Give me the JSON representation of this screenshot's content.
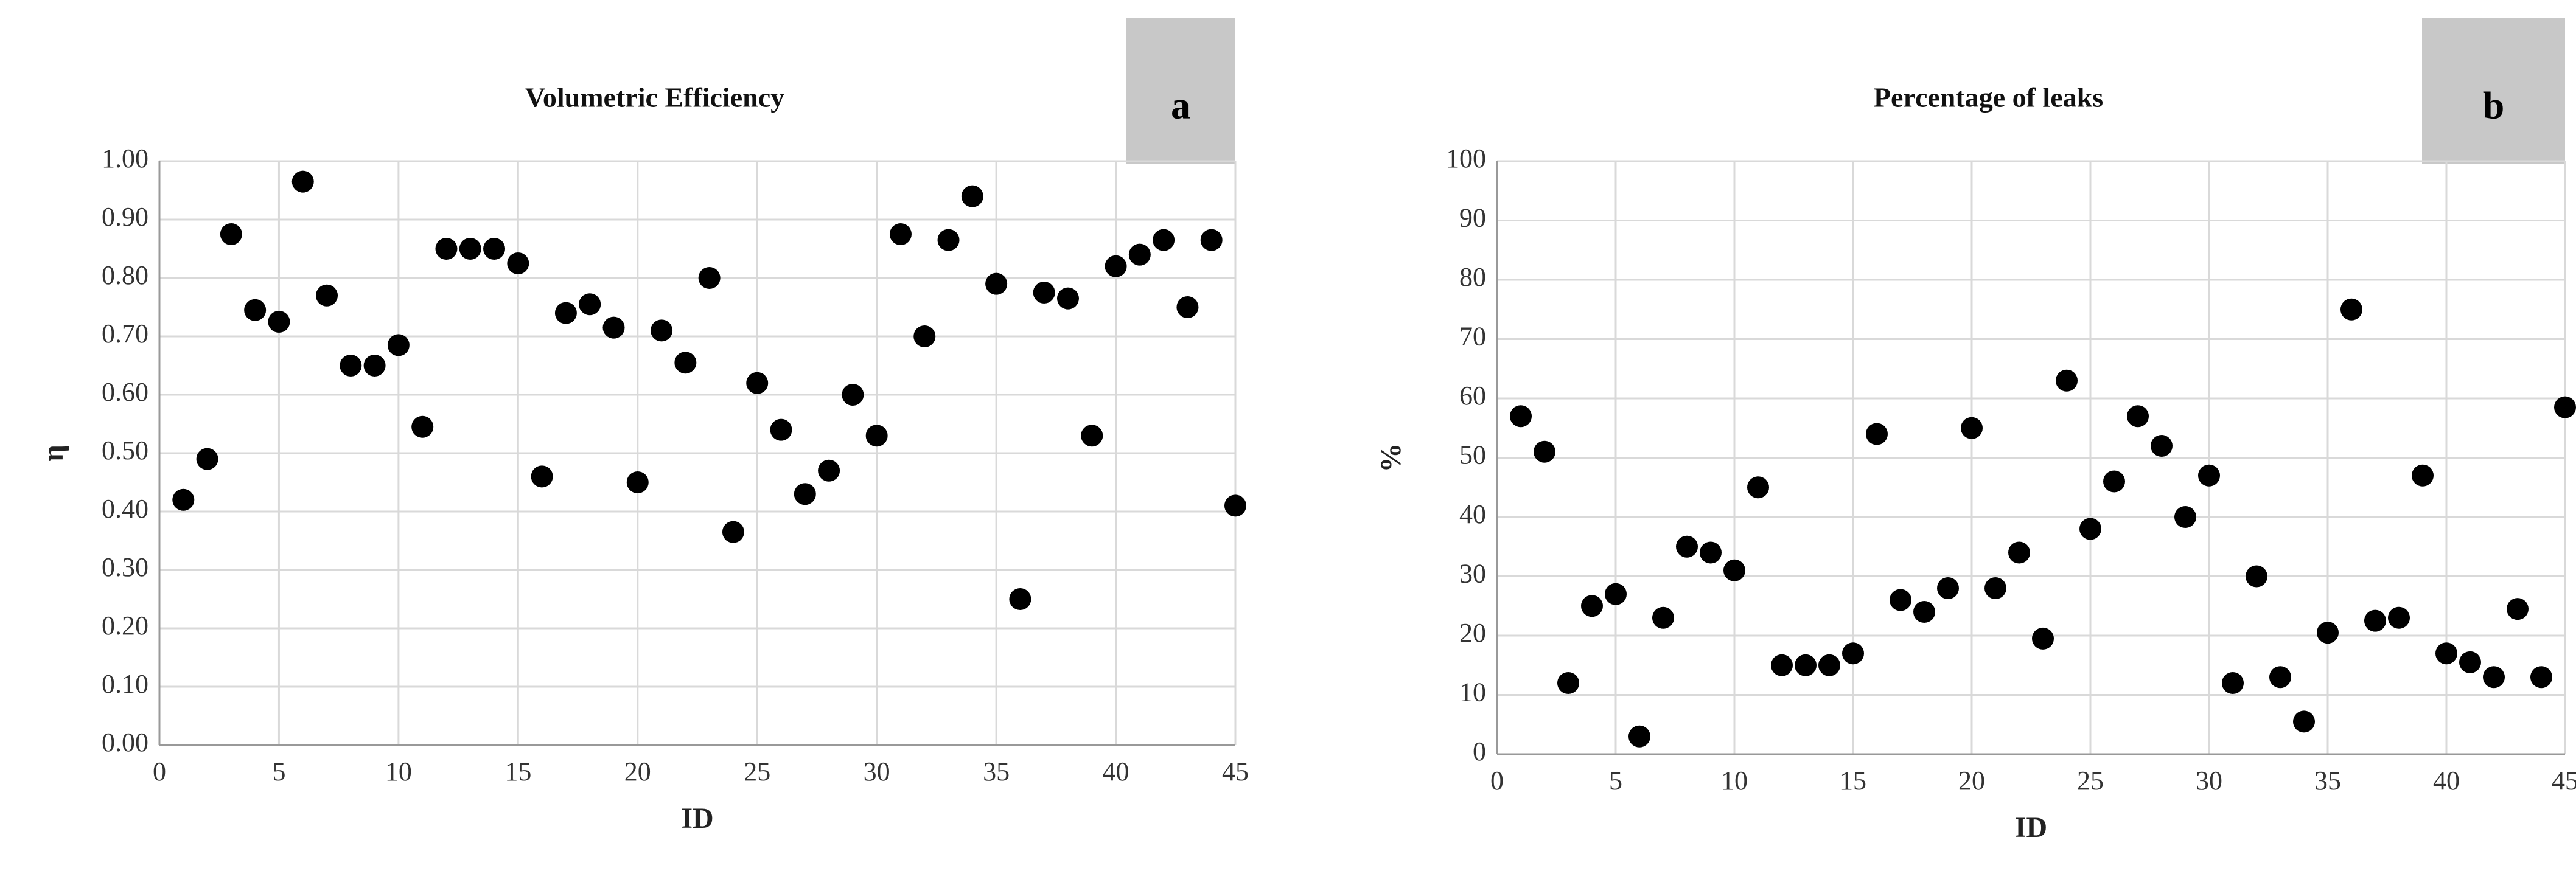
{
  "chart_data": [
    {
      "type": "scatter",
      "title": "Volumetric Efficiency",
      "panel_label": "a",
      "x_label": "ID",
      "y_label": "η",
      "color": "#000000",
      "grid": true,
      "x": [
        1,
        2,
        3,
        4,
        5,
        6,
        7,
        8,
        9,
        10,
        11,
        12,
        13,
        14,
        15,
        16,
        17,
        18,
        19,
        20,
        21,
        22,
        23,
        24,
        25,
        26,
        27,
        28,
        29,
        30,
        31,
        32,
        33,
        34,
        35,
        36,
        37,
        38,
        39,
        40,
        41,
        42,
        43,
        44,
        45
      ],
      "values": [
        0.42,
        0.49,
        0.875,
        0.745,
        0.725,
        0.965,
        0.77,
        0.65,
        0.65,
        0.685,
        0.545,
        0.85,
        0.85,
        0.85,
        0.825,
        0.46,
        0.74,
        0.755,
        0.715,
        0.45,
        0.71,
        0.655,
        0.8,
        0.365,
        0.62,
        0.54,
        0.43,
        0.47,
        0.6,
        0.53,
        0.875,
        0.7,
        0.865,
        0.94,
        0.79,
        0.25,
        0.775,
        0.765,
        0.53,
        0.82,
        0.84,
        0.865,
        0.75,
        0.865,
        0.41
      ],
      "xlim": [
        0,
        45
      ],
      "xticks": [
        0,
        5,
        10,
        15,
        20,
        25,
        30,
        35,
        40,
        45
      ],
      "ylim": [
        0,
        1
      ],
      "yticks": [
        {
          "value": 0,
          "label": "0.00"
        },
        {
          "value": 0.1,
          "label": "0.10"
        },
        {
          "value": 0.2,
          "label": "0.20"
        },
        {
          "value": 0.3,
          "label": "0.30"
        },
        {
          "value": 0.4,
          "label": "0.40"
        },
        {
          "value": 0.5,
          "label": "0.50"
        },
        {
          "value": 0.6,
          "label": "0.60"
        },
        {
          "value": 0.7,
          "label": "0.70"
        },
        {
          "value": 0.8,
          "label": "0.80"
        },
        {
          "value": 0.9,
          "label": "0.90"
        },
        {
          "value": 1,
          "label": "1.00"
        }
      ]
    },
    {
      "type": "scatter",
      "title": "Percentage of leaks",
      "panel_label": "b",
      "x_label": "ID",
      "y_label": "%",
      "color": "#000000",
      "grid": true,
      "x": [
        1,
        2,
        3,
        4,
        5,
        6,
        7,
        8,
        9,
        10,
        11,
        12,
        13,
        14,
        15,
        16,
        17,
        18,
        19,
        20,
        21,
        22,
        23,
        24,
        25,
        26,
        27,
        28,
        29,
        30,
        31,
        32,
        33,
        34,
        35,
        36,
        37,
        38,
        39,
        40,
        41,
        42,
        43,
        44,
        45
      ],
      "values": [
        57,
        51,
        12,
        25,
        27,
        3,
        23,
        35,
        34,
        31,
        45,
        15,
        15,
        15,
        17,
        54,
        26,
        24,
        28,
        55,
        28,
        34,
        19.5,
        63,
        38,
        46,
        57,
        52,
        40,
        47,
        12,
        30,
        13,
        5.5,
        20.5,
        75,
        22.5,
        23,
        47,
        17,
        15.5,
        13,
        24.5,
        13,
        58.5
      ],
      "xlim": [
        0,
        45
      ],
      "xticks": [
        0,
        5,
        10,
        15,
        20,
        25,
        30,
        35,
        40,
        45
      ],
      "ylim": [
        0,
        100
      ],
      "yticks": [
        0,
        10,
        20,
        30,
        40,
        50,
        60,
        70,
        80,
        90,
        100
      ]
    }
  ]
}
